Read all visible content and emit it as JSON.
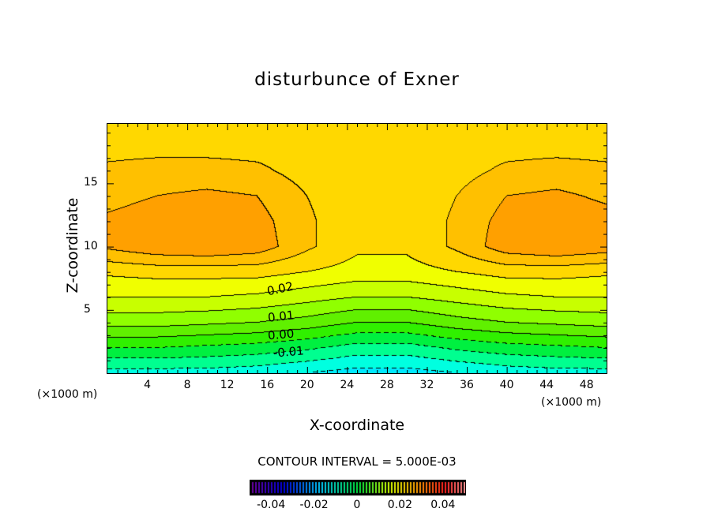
{
  "chart_data": {
    "type": "heatmap",
    "subtype": "filled-contour",
    "title": "disturbunce of Exner",
    "xlabel": "X-coordinate",
    "ylabel": "Z-coordinate",
    "x_unit": "(×1000 m)",
    "z_unit": "(×1000 m)",
    "xlim": [
      0,
      50
    ],
    "ylim": [
      0,
      19.7
    ],
    "xticks": [
      4,
      8,
      12,
      16,
      20,
      24,
      28,
      32,
      36,
      40,
      44,
      48
    ],
    "yticks": [
      5,
      10,
      15
    ],
    "contour_interval_text": "CONTOUR INTERVAL = 5.000E-03",
    "contour_interval": 0.005,
    "contour_labels": [
      "0.02",
      "0.01",
      "0.00",
      "-0.01"
    ],
    "colorbar": {
      "range": [
        -0.05,
        0.05
      ],
      "ticks": [
        "-0.04",
        "-0.02",
        "0",
        "0.02",
        "0.04"
      ],
      "tick_values": [
        -0.04,
        -0.02,
        0,
        0.02,
        0.04
      ]
    },
    "grid_x": [
      0,
      5,
      10,
      15,
      20,
      25,
      30,
      35,
      40,
      45,
      50
    ],
    "grid_z": [
      0,
      2,
      4,
      6,
      8,
      10,
      12,
      14,
      16,
      18,
      20
    ],
    "values": [
      [
        -0.017,
        -0.017,
        -0.017,
        -0.018,
        -0.02,
        -0.022,
        -0.022,
        -0.02,
        -0.018,
        -0.017,
        -0.017
      ],
      [
        -0.005,
        -0.005,
        -0.006,
        -0.007,
        -0.009,
        -0.012,
        -0.012,
        -0.009,
        -0.007,
        -0.006,
        -0.005
      ],
      [
        0.007,
        0.007,
        0.006,
        0.005,
        0.003,
        0.0,
        0.0,
        0.003,
        0.005,
        0.006,
        0.007
      ],
      [
        0.015,
        0.015,
        0.015,
        0.014,
        0.012,
        0.01,
        0.01,
        0.012,
        0.014,
        0.015,
        0.015
      ],
      [
        0.021,
        0.022,
        0.022,
        0.022,
        0.02,
        0.018,
        0.018,
        0.02,
        0.022,
        0.022,
        0.021
      ],
      [
        0.031,
        0.034,
        0.035,
        0.033,
        0.026,
        0.021,
        0.021,
        0.026,
        0.033,
        0.035,
        0.033
      ],
      [
        0.031,
        0.033,
        0.034,
        0.032,
        0.026,
        0.021,
        0.021,
        0.026,
        0.032,
        0.034,
        0.032
      ],
      [
        0.028,
        0.03,
        0.031,
        0.03,
        0.025,
        0.021,
        0.021,
        0.025,
        0.03,
        0.031,
        0.029
      ],
      [
        0.026,
        0.027,
        0.027,
        0.026,
        0.023,
        0.022,
        0.022,
        0.023,
        0.026,
        0.027,
        0.026
      ],
      [
        0.023,
        0.023,
        0.023,
        0.023,
        0.023,
        0.023,
        0.023,
        0.023,
        0.023,
        0.023,
        0.023
      ],
      [
        0.021,
        0.021,
        0.021,
        0.021,
        0.022,
        0.025,
        0.025,
        0.022,
        0.021,
        0.021,
        0.021
      ]
    ],
    "level_colors": {
      "start": -0.025,
      "colors": [
        "#00e8ff",
        "#00ffe0",
        "#00ff90",
        "#00f040",
        "#30f000",
        "#60f000",
        "#90ff00",
        "#c8ff00",
        "#f0ff00",
        "#ffd800",
        "#ffc000",
        "#ffa000",
        "#ff8800"
      ]
    }
  }
}
